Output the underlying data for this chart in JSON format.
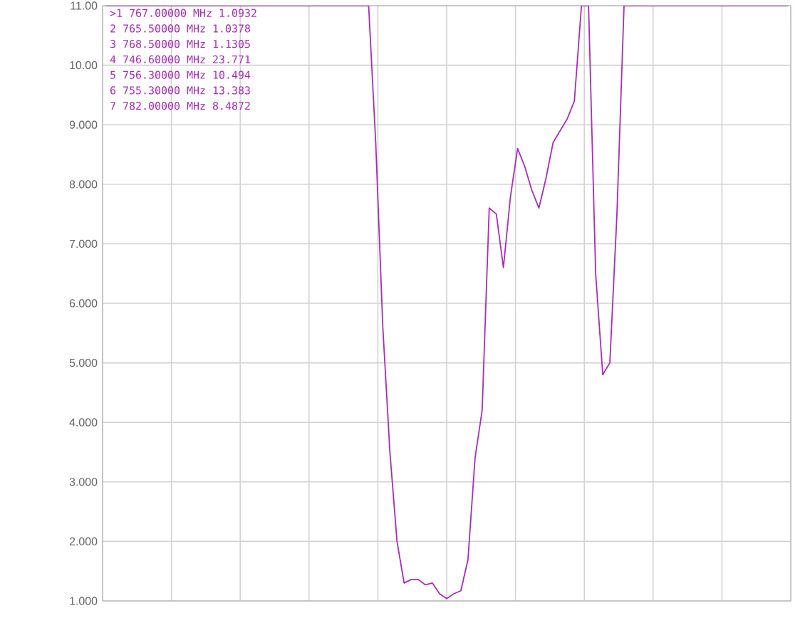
{
  "chart_data": {
    "type": "line",
    "categories": [
      null,
      null,
      null,
      null,
      null,
      null,
      null,
      null,
      null,
      null,
      null,
      null,
      null,
      null,
      null,
      null,
      null,
      null,
      null,
      null,
      null,
      null,
      null,
      null,
      null,
      null,
      null,
      null,
      null,
      null,
      null,
      null,
      null,
      null,
      null,
      null,
      null,
      null,
      null,
      null,
      null,
      null,
      null,
      null,
      null,
      null,
      null,
      null,
      null,
      null,
      null,
      null,
      null,
      null,
      null,
      null,
      null,
      null,
      null,
      null,
      null,
      null,
      null,
      null,
      null,
      null,
      null,
      null,
      null,
      null,
      null,
      null,
      null,
      null,
      null,
      null,
      null,
      null,
      null,
      null,
      null,
      null,
      null,
      null,
      null,
      null,
      null,
      null,
      null,
      null,
      null,
      null,
      null,
      null,
      null,
      null,
      null
    ],
    "series": [
      {
        "color": "#a82cb8",
        "values": [
          11,
          11,
          11,
          11,
          11,
          11,
          11,
          11,
          11,
          11,
          11,
          11,
          11,
          11,
          11,
          11,
          11,
          11,
          11,
          11,
          11,
          11,
          11,
          11,
          11,
          11,
          11,
          11,
          11,
          11,
          11,
          11,
          11,
          11,
          11,
          11,
          11,
          11,
          8.7,
          5.6,
          3.5,
          2.0,
          1.3,
          1.36,
          1.36,
          1.27,
          1.3,
          1.12,
          1.04,
          1.12,
          1.17,
          1.69,
          3.4,
          4.2,
          7.6,
          7.5,
          6.6,
          7.8,
          8.6,
          8.3,
          7.9,
          7.6,
          8.1,
          8.7,
          8.9,
          9.1,
          9.4,
          11,
          11,
          6.5,
          4.8,
          5.0,
          7.5,
          11,
          11,
          11,
          11,
          11,
          11,
          11,
          11,
          11,
          11,
          11,
          11,
          11,
          11,
          11,
          11,
          11,
          11,
          11,
          11,
          11,
          11,
          11,
          11
        ]
      }
    ],
    "ylim": [
      1,
      11
    ],
    "yticks": [
      {
        "value": 1,
        "label": "1.000"
      },
      {
        "value": 2,
        "label": "2.000"
      },
      {
        "value": 3,
        "label": "3.000"
      },
      {
        "value": 4,
        "label": "4.000"
      },
      {
        "value": 5,
        "label": "5.000"
      },
      {
        "value": 6,
        "label": "6.000"
      },
      {
        "value": 7,
        "label": "7.000"
      },
      {
        "value": 8,
        "label": "8.000"
      },
      {
        "value": 9,
        "label": "9.000"
      },
      {
        "value": 10,
        "label": "10.00"
      },
      {
        "value": 11,
        "label": "11.00"
      }
    ],
    "grid": true,
    "tick_labels": "y",
    "annotations": [
      ">1 767.00000 MHz 1.0932",
      "2 765.50000 MHz 1.0378",
      "3 768.50000 MHz 1.1305",
      "4 746.60000 MHz 23.771",
      "5 756.30000 MHz 10.494",
      "6 755.30000 MHz 13.383",
      "7 782.00000 MHz 8.4872"
    ]
  }
}
